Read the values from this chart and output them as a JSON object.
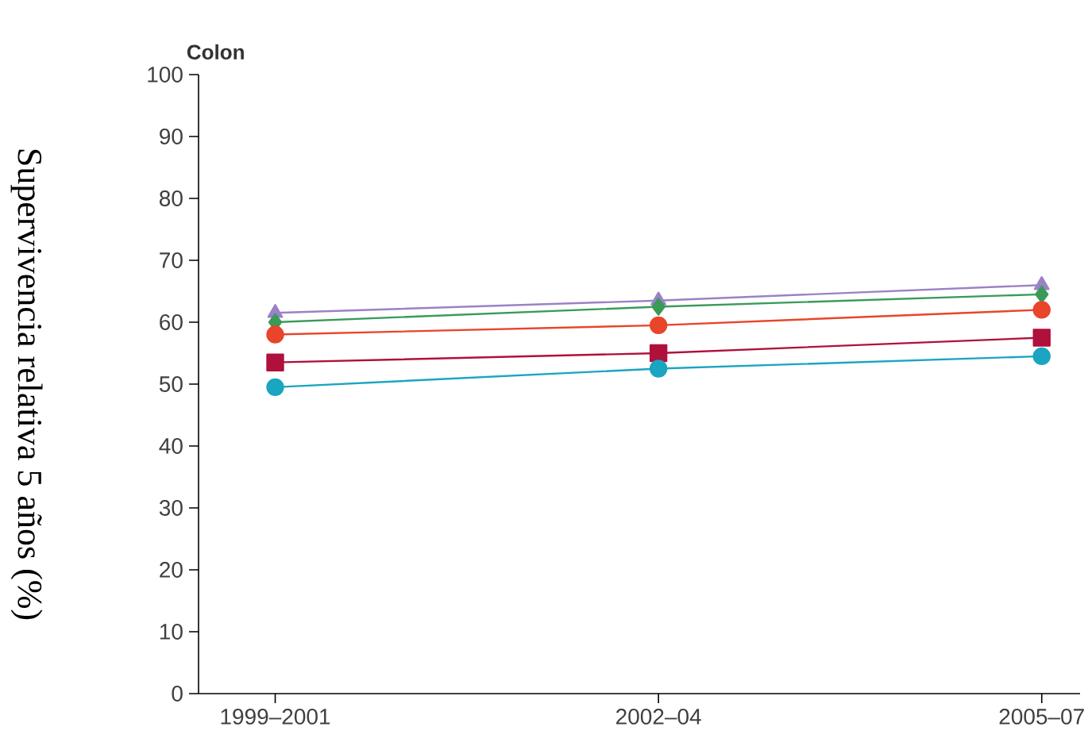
{
  "chart_data": {
    "type": "line",
    "title": "Colon",
    "ylabel": "Supervivencia relativa 5 años (%)",
    "categories": [
      "1999–2001",
      "2002–04",
      "2005–07"
    ],
    "series": [
      {
        "color": "#9b82c4",
        "marker": "triangle",
        "values": [
          61.5,
          63.5,
          66
        ]
      },
      {
        "color": "#3a9a5a",
        "marker": "diamond",
        "values": [
          60,
          62.5,
          64.5
        ]
      },
      {
        "color": "#e8452a",
        "marker": "circle",
        "values": [
          58,
          59.5,
          62
        ]
      },
      {
        "color": "#b0103c",
        "marker": "square",
        "values": [
          53.5,
          55,
          57.5
        ]
      },
      {
        "color": "#1aa5c0",
        "marker": "circle",
        "values": [
          49.5,
          52.5,
          54.5
        ]
      }
    ],
    "ylim": [
      0,
      100
    ],
    "yticks": [
      0,
      10,
      20,
      30,
      40,
      50,
      60,
      70,
      80,
      90,
      100
    ],
    "grid": false
  }
}
